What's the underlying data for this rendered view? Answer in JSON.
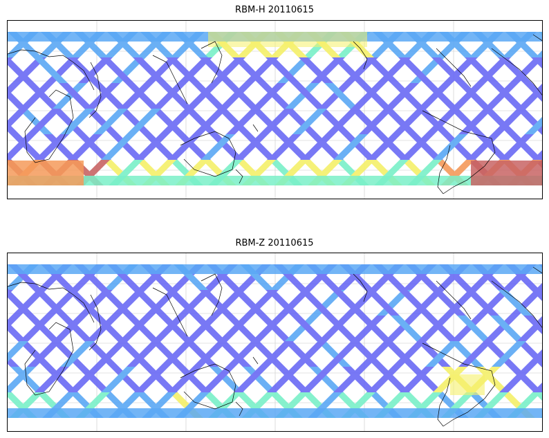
{
  "maps": [
    {
      "title": "RBM-H 20110615",
      "colormap": "jet",
      "swath_pattern": "crisscrossing satellite swaths between about 80°N and 60°S",
      "high_value_regions": [
        "Southern Ocean south of Africa",
        "Southern Ocean south-west of South America",
        "North Pacific near Japan / Kamchatka"
      ]
    },
    {
      "title": "RBM-Z 20110615",
      "colormap": "jet",
      "swath_pattern": "crisscrossing satellite swaths between about 80°N and 60°S",
      "high_value_regions": [
        "South Atlantic east of South America"
      ]
    }
  ],
  "colors": {
    "low": "#6a6af5",
    "mid_low": "#5aa8f5",
    "mid": "#7af0c8",
    "mid_high": "#f5f06a",
    "high": "#f59a5a",
    "very_high": "#c86464",
    "coastline": "#000000",
    "grid": "#c8c8c8"
  }
}
